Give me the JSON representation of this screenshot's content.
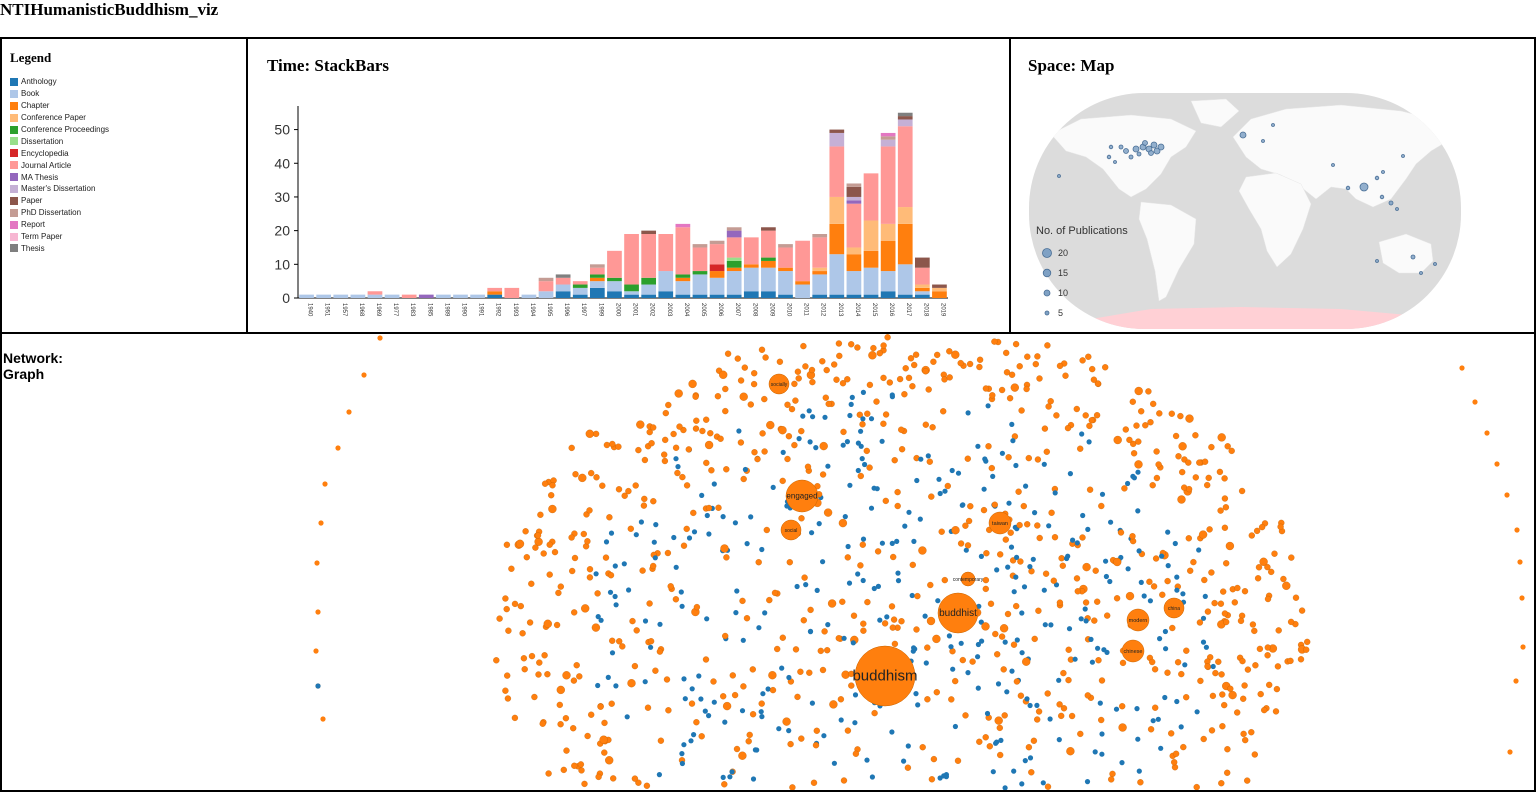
{
  "app": {
    "title": "NTIHumanisticBuddhism_viz"
  },
  "legend": {
    "title": "Legend",
    "items": [
      {
        "label": "Anthology",
        "color": "#1f77b4"
      },
      {
        "label": "Book",
        "color": "#aec7e8"
      },
      {
        "label": "Chapter",
        "color": "#ff7f0e"
      },
      {
        "label": "Conference Paper",
        "color": "#ffbb78"
      },
      {
        "label": "Conference Proceedings",
        "color": "#2ca02c"
      },
      {
        "label": "Dissertation",
        "color": "#98df8a"
      },
      {
        "label": "Encyclopedia",
        "color": "#d62728"
      },
      {
        "label": "Journal Article",
        "color": "#ff9896"
      },
      {
        "label": "MA Thesis",
        "color": "#9467bd"
      },
      {
        "label": "Master's Dissertation",
        "color": "#c5b0d5"
      },
      {
        "label": "Paper",
        "color": "#8c564b"
      },
      {
        "label": "PhD Dissertation",
        "color": "#c49c94"
      },
      {
        "label": "Report",
        "color": "#e377c2"
      },
      {
        "label": "Term Paper",
        "color": "#f7b6d2"
      },
      {
        "label": "Thesis",
        "color": "#7f7f7f"
      }
    ]
  },
  "time": {
    "title": "Time: StackBars"
  },
  "space": {
    "title": "Space: Map",
    "size_legend": {
      "title": "No. of Publications",
      "values": [
        "20",
        "15",
        "10",
        "5"
      ]
    }
  },
  "network": {
    "title": "Network: Graph",
    "labeled_nodes": [
      {
        "label": "buddhism",
        "weight": 30
      },
      {
        "label": "buddhist",
        "weight": 20
      },
      {
        "label": "engaged",
        "weight": 16
      },
      {
        "label": "taiwan",
        "weight": 11
      },
      {
        "label": "modern",
        "weight": 11
      },
      {
        "label": "chinese",
        "weight": 11
      },
      {
        "label": "china",
        "weight": 10
      },
      {
        "label": "socially",
        "weight": 10
      },
      {
        "label": "social",
        "weight": 10
      },
      {
        "label": "contemporary",
        "weight": 7
      }
    ]
  },
  "chart_data": {
    "type": "bar",
    "stacked": true,
    "title": "Time: StackBars",
    "ylim": [
      0,
      57
    ],
    "y_ticks": [
      0,
      10,
      20,
      30,
      40,
      50
    ],
    "categories": [
      "1940",
      "1951",
      "1957",
      "1968",
      "1969",
      "1977",
      "1983",
      "1985",
      "1989",
      "1990",
      "1991",
      "1992",
      "1993",
      "1994",
      "1995",
      "1996",
      "1997",
      "1999",
      "2000",
      "2001",
      "2002",
      "2003",
      "2004",
      "2005",
      "2006",
      "2007",
      "2008",
      "2009",
      "2010",
      "2011",
      "2012",
      "2013",
      "2014",
      "2015",
      "2016",
      "2017",
      "2018",
      "2019"
    ],
    "series": [
      {
        "name": "Anthology",
        "values": [
          0,
          0,
          0,
          0,
          0,
          0,
          0,
          0,
          0,
          0,
          0,
          1,
          0,
          0,
          0,
          2,
          1,
          3,
          2,
          1,
          1,
          2,
          1,
          1,
          1,
          1,
          2,
          2,
          1,
          0,
          1,
          1,
          1,
          1,
          2,
          1,
          1,
          0
        ]
      },
      {
        "name": "Book",
        "values": [
          1,
          1,
          1,
          1,
          1,
          1,
          0,
          0,
          1,
          1,
          1,
          0,
          0,
          1,
          2,
          2,
          2,
          2,
          3,
          1,
          3,
          6,
          4,
          6,
          5,
          7,
          7,
          7,
          7,
          4,
          6,
          12,
          7,
          8,
          6,
          9,
          1,
          0
        ]
      },
      {
        "name": "Chapter",
        "values": [
          0,
          0,
          0,
          0,
          0,
          0,
          0,
          0,
          0,
          0,
          0,
          1,
          0,
          0,
          0,
          0,
          0,
          1,
          0,
          0,
          0,
          0,
          1,
          0,
          2,
          1,
          1,
          2,
          1,
          1,
          1,
          9,
          5,
          5,
          9,
          12,
          1,
          2
        ]
      },
      {
        "name": "Conference Paper",
        "values": [
          0,
          0,
          0,
          0,
          0,
          0,
          0,
          0,
          0,
          0,
          0,
          0,
          0,
          0,
          0,
          0,
          0,
          0,
          0,
          0,
          0,
          0,
          0,
          0,
          0,
          0,
          0,
          0,
          0,
          0,
          1,
          8,
          2,
          9,
          5,
          5,
          1,
          1
        ]
      },
      {
        "name": "Conference Proceedings",
        "values": [
          0,
          0,
          0,
          0,
          0,
          0,
          0,
          0,
          0,
          0,
          0,
          0,
          0,
          0,
          0,
          0,
          1,
          1,
          1,
          2,
          2,
          0,
          1,
          1,
          0,
          2,
          0,
          1,
          0,
          0,
          0,
          0,
          0,
          0,
          0,
          0,
          0,
          0
        ]
      },
      {
        "name": "Dissertation",
        "values": [
          0,
          0,
          0,
          0,
          0,
          0,
          0,
          0,
          0,
          0,
          0,
          0,
          0,
          0,
          0,
          0,
          0,
          0,
          0,
          0,
          0,
          0,
          0,
          0,
          0,
          1,
          0,
          0,
          0,
          0,
          0,
          0,
          0,
          0,
          0,
          0,
          0,
          0
        ]
      },
      {
        "name": "Encyclopedia",
        "values": [
          0,
          0,
          0,
          0,
          0,
          0,
          0,
          0,
          0,
          0,
          0,
          0,
          0,
          0,
          0,
          0,
          0,
          0,
          0,
          0,
          0,
          0,
          0,
          0,
          2,
          0,
          0,
          0,
          0,
          0,
          0,
          0,
          0,
          0,
          0,
          0,
          0,
          0
        ]
      },
      {
        "name": "Journal Article",
        "values": [
          0,
          0,
          0,
          0,
          1,
          0,
          1,
          0,
          0,
          0,
          0,
          1,
          3,
          0,
          3,
          2,
          1,
          2,
          8,
          15,
          13,
          11,
          14,
          7,
          6,
          6,
          8,
          8,
          6,
          12,
          9,
          15,
          13,
          14,
          23,
          24,
          5,
          0
        ]
      },
      {
        "name": "MA Thesis",
        "values": [
          0,
          0,
          0,
          0,
          0,
          0,
          0,
          1,
          0,
          0,
          0,
          0,
          0,
          0,
          0,
          0,
          0,
          0,
          0,
          0,
          0,
          0,
          0,
          0,
          0,
          2,
          0,
          0,
          0,
          0,
          0,
          0,
          1,
          0,
          0,
          0,
          0,
          0
        ]
      },
      {
        "name": "Master's Dissertation",
        "values": [
          0,
          0,
          0,
          0,
          0,
          0,
          0,
          0,
          0,
          0,
          0,
          0,
          0,
          0,
          0,
          0,
          0,
          0,
          0,
          0,
          0,
          0,
          0,
          0,
          0,
          0,
          0,
          0,
          0,
          0,
          0,
          4,
          1,
          0,
          2,
          2,
          0,
          0
        ]
      },
      {
        "name": "Paper",
        "values": [
          0,
          0,
          0,
          0,
          0,
          0,
          0,
          0,
          0,
          0,
          0,
          0,
          0,
          0,
          0,
          0,
          0,
          0,
          0,
          0,
          1,
          0,
          0,
          0,
          0,
          0,
          0,
          1,
          0,
          0,
          0,
          1,
          3,
          0,
          0,
          1,
          3,
          1
        ]
      },
      {
        "name": "PhD Dissertation",
        "values": [
          0,
          0,
          0,
          0,
          0,
          0,
          0,
          0,
          0,
          0,
          0,
          0,
          0,
          0,
          1,
          0,
          0,
          1,
          0,
          0,
          0,
          0,
          0,
          1,
          1,
          1,
          0,
          0,
          1,
          0,
          1,
          0,
          1,
          0,
          1,
          0,
          0,
          0
        ]
      },
      {
        "name": "Report",
        "values": [
          0,
          0,
          0,
          0,
          0,
          0,
          0,
          0,
          0,
          0,
          0,
          0,
          0,
          0,
          0,
          0,
          0,
          0,
          0,
          0,
          0,
          0,
          1,
          0,
          0,
          0,
          0,
          0,
          0,
          0,
          0,
          0,
          0,
          0,
          1,
          0,
          0,
          0
        ]
      },
      {
        "name": "Term Paper",
        "values": [
          0,
          0,
          0,
          0,
          0,
          0,
          0,
          0,
          0,
          0,
          0,
          0,
          0,
          0,
          0,
          0,
          0,
          0,
          0,
          0,
          0,
          0,
          0,
          0,
          0,
          0,
          0,
          0,
          0,
          0,
          0,
          0,
          0,
          0,
          0,
          0,
          0,
          0
        ]
      },
      {
        "name": "Thesis",
        "values": [
          0,
          0,
          0,
          0,
          0,
          0,
          0,
          0,
          0,
          0,
          0,
          0,
          0,
          0,
          0,
          1,
          0,
          0,
          0,
          0,
          0,
          0,
          0,
          0,
          0,
          0,
          0,
          0,
          0,
          0,
          0,
          0,
          0,
          0,
          0,
          1,
          0,
          0
        ]
      }
    ],
    "grid": false,
    "legend": "left panel"
  }
}
